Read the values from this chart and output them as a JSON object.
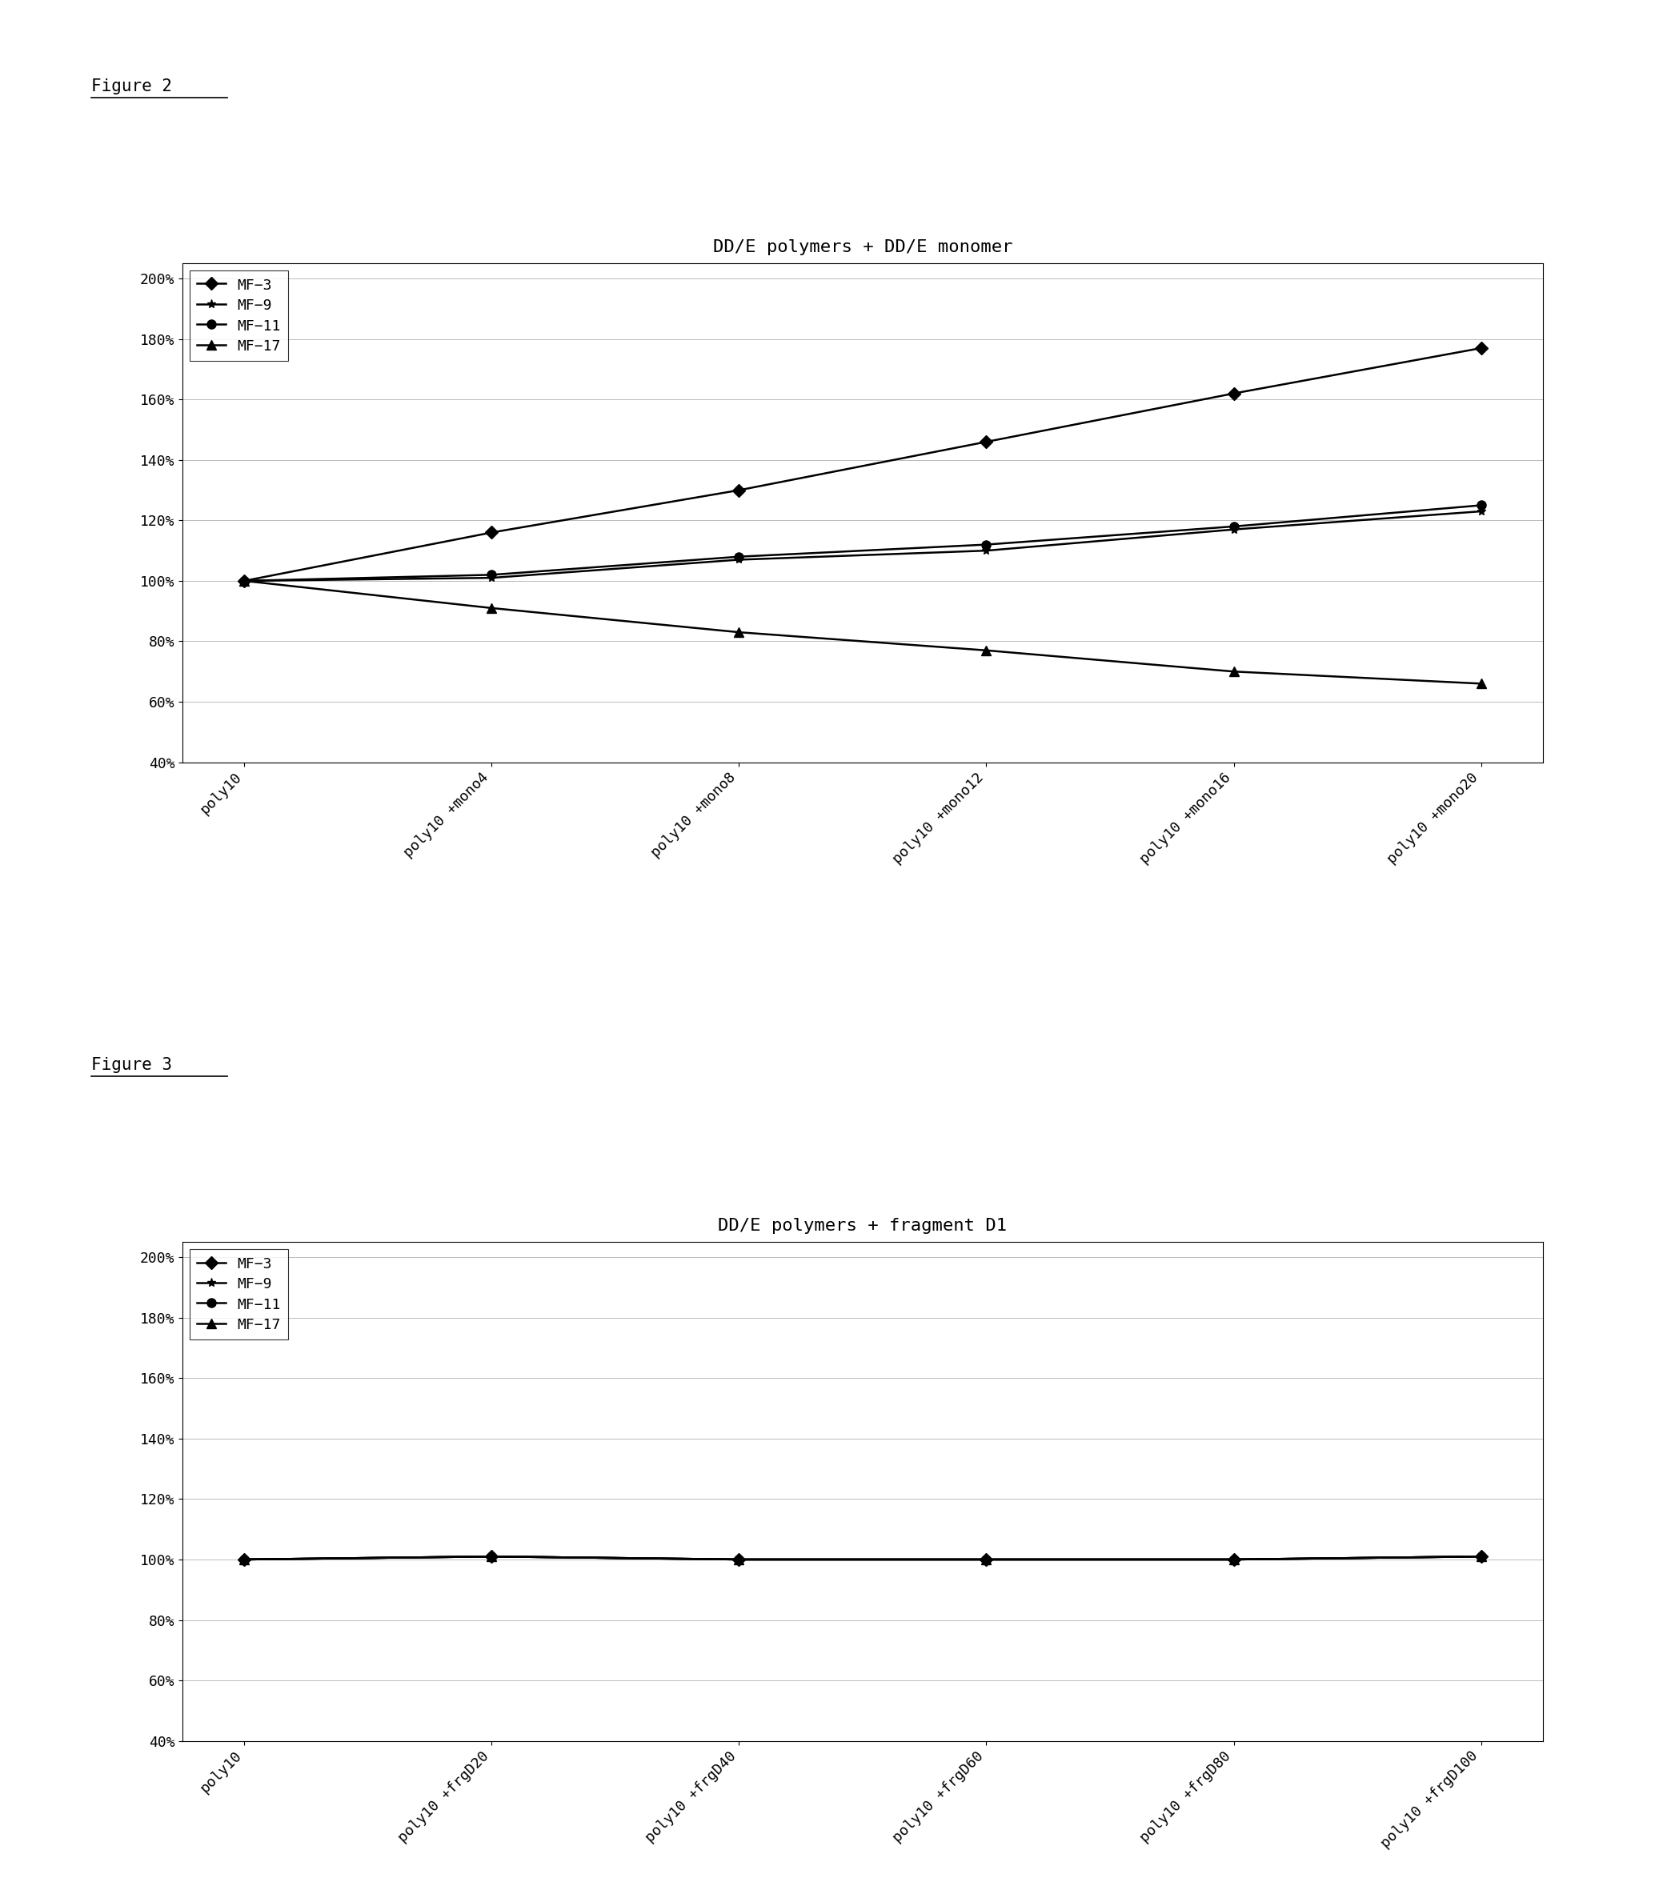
{
  "fig2_title": "DD/E polymers + DD/E monomer",
  "fig3_title": "DD/E polymers + fragment D1",
  "fig2_label": "Figure 2",
  "fig3_label": "Figure 3",
  "fig2_xticklabels": [
    "poly10",
    "poly10 +mono4",
    "poly10 +mono8",
    "poly10 +mono12",
    "poly10 +mono16",
    "poly10 +mono20"
  ],
  "fig3_xticklabels": [
    "poly10",
    "poly10 +frgD20",
    "poly10 +frgD40",
    "poly10 +frgD60",
    "poly10 +frgD80",
    "poly10 +frgD100"
  ],
  "series_labels": [
    "MF−3",
    "MF−9",
    "MF−11",
    "MF−17"
  ],
  "fig2_data": {
    "MF-3": [
      1.0,
      1.16,
      1.3,
      1.46,
      1.62,
      1.77
    ],
    "MF-9": [
      1.0,
      1.01,
      1.07,
      1.1,
      1.17,
      1.23
    ],
    "MF-11": [
      1.0,
      1.02,
      1.08,
      1.12,
      1.18,
      1.25
    ],
    "MF-17": [
      1.0,
      0.91,
      0.83,
      0.77,
      0.7,
      0.66
    ]
  },
  "fig3_data": {
    "MF-3": [
      1.0,
      1.01,
      1.0,
      1.0,
      1.0,
      1.01
    ],
    "MF-9": [
      1.0,
      1.01,
      1.0,
      1.0,
      1.0,
      1.01
    ],
    "MF-11": [
      1.0,
      1.01,
      1.0,
      1.0,
      1.0,
      1.01
    ],
    "MF-17": [
      1.0,
      1.01,
      1.0,
      1.0,
      1.0,
      1.01
    ]
  },
  "markers": [
    "D",
    "*",
    "o",
    "^"
  ],
  "line_color": "#000000",
  "ylim": [
    0.4,
    2.05
  ],
  "yticks": [
    0.4,
    0.6,
    0.8,
    1.0,
    1.2,
    1.4,
    1.6,
    1.8,
    2.0
  ],
  "yticklabels": [
    "40%",
    "60%",
    "80%",
    "100%",
    "120%",
    "140%",
    "160%",
    "180%",
    "200%"
  ],
  "title_fontsize": 16,
  "tick_fontsize": 13,
  "legend_fontsize": 13,
  "figure_label_fontsize": 15,
  "bg_color": "#ffffff"
}
